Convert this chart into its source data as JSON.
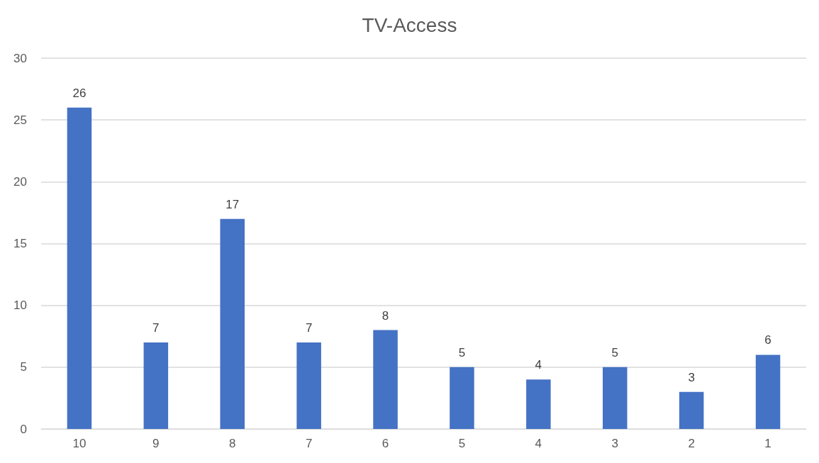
{
  "chart_data": {
    "type": "bar",
    "title": "TV-Access",
    "categories": [
      "10",
      "9",
      "8",
      "7",
      "6",
      "5",
      "4",
      "3",
      "2",
      "1"
    ],
    "values": [
      26,
      7,
      17,
      7,
      8,
      5,
      4,
      5,
      3,
      6
    ],
    "color": "#4472c4",
    "ylim": [
      0,
      30
    ],
    "yticks": [
      0,
      5,
      10,
      15,
      20,
      25,
      30
    ],
    "grid": "y",
    "data_labels": true
  }
}
